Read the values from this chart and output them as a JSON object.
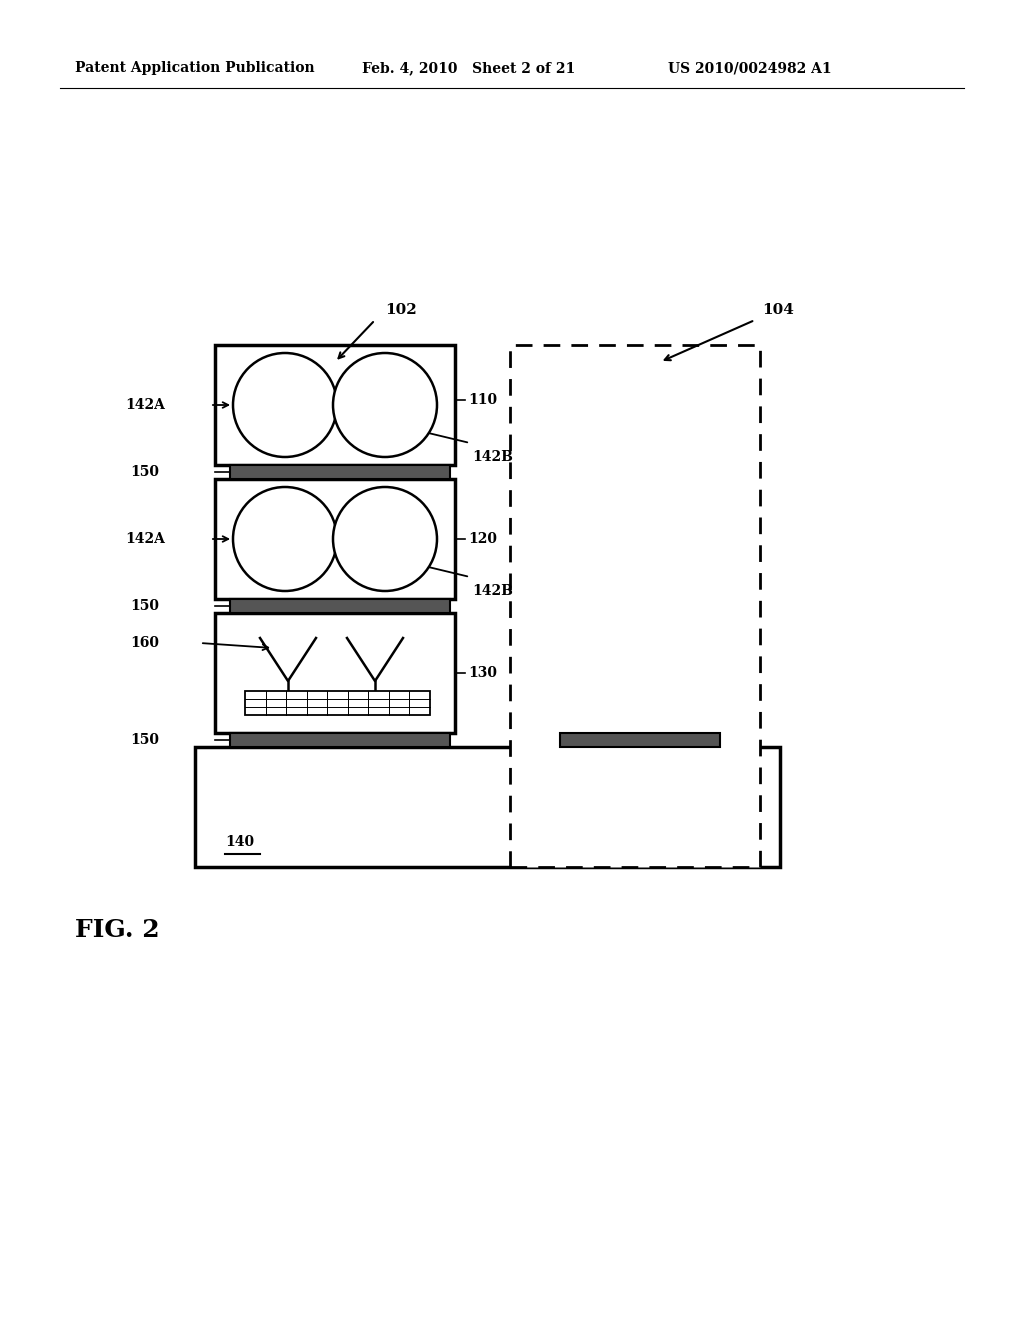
{
  "bg_color": "#ffffff",
  "line_color": "#000000",
  "header_left": "Patent Application Publication",
  "header_mid": "Feb. 4, 2010   Sheet 2 of 21",
  "header_right": "US 2010/0024982 A1",
  "fig_label": "FIG. 2"
}
